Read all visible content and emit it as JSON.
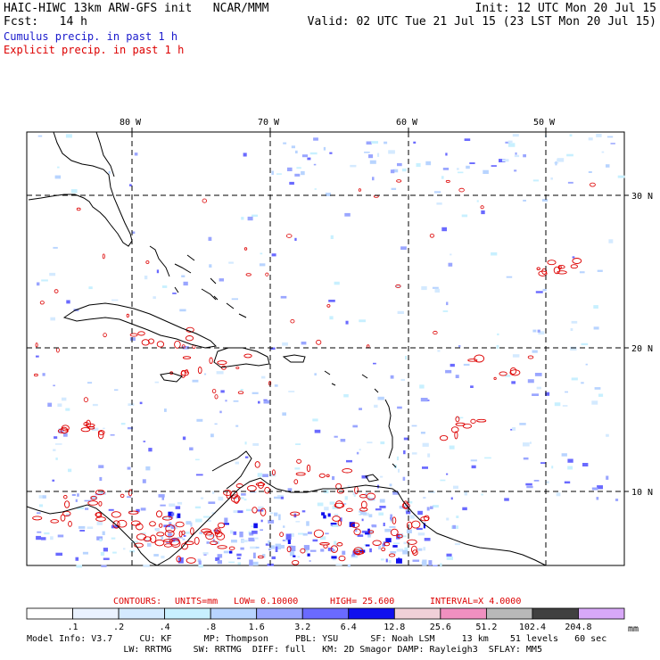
{
  "header": {
    "model": "HAIC-HIWC 13km ARW-GFS init   NCAR/MMM",
    "fcst": "Fcst:   14 h",
    "init": "Init: 12 UTC Mon 20 Jul 15",
    "valid": "Valid: 02 UTC Tue 21 Jul 15 (23 LST Mon 20 Jul 15)",
    "field1": "Cumulus precip. in past 1 h",
    "field2": "Explicit precip. in past 1 h",
    "field1_color": "#1a1acc",
    "field2_color": "#dd0000"
  },
  "map": {
    "lon_labels": [
      "80 W",
      "70 W",
      "60 W",
      "50 W"
    ],
    "lat_labels": [
      "30 N",
      "20 N",
      "10 N"
    ]
  },
  "contours": {
    "label": "CONTOURS:",
    "units": "UNITS=mm",
    "low": "LOW= 0.10000",
    "high": "HIGH=  25.600",
    "interval": "INTERVAL=X  4.0000",
    "color": "#dd0000"
  },
  "colorbar": {
    "ticks": [
      ".1",
      ".2",
      ".4",
      ".8",
      "1.6",
      "3.2",
      "6.4",
      "12.8",
      "25.6",
      "51.2",
      "102.4",
      "204.8"
    ],
    "units": "mm",
    "colors": [
      "#ffffff",
      "#eaf2ff",
      "#d4eaff",
      "#c8f0ff",
      "#b8d4ff",
      "#9aa6ff",
      "#6a6aff",
      "#1010ee",
      "#f0d0d8",
      "#f090c0",
      "#b8b8b8",
      "#404040",
      "#d8a8f8"
    ]
  },
  "footer": {
    "line1": "Model Info: V3.7     CU: KF      MP: Thompson     PBL: YSU      SF: Noah LSM     13 km    51 levels   60 sec",
    "line2": "                  LW: RRTMG    SW: RRTMG  DIFF: full   KM: 2D Smagor DAMP: Rayleigh3  SFLAY: MM5"
  }
}
